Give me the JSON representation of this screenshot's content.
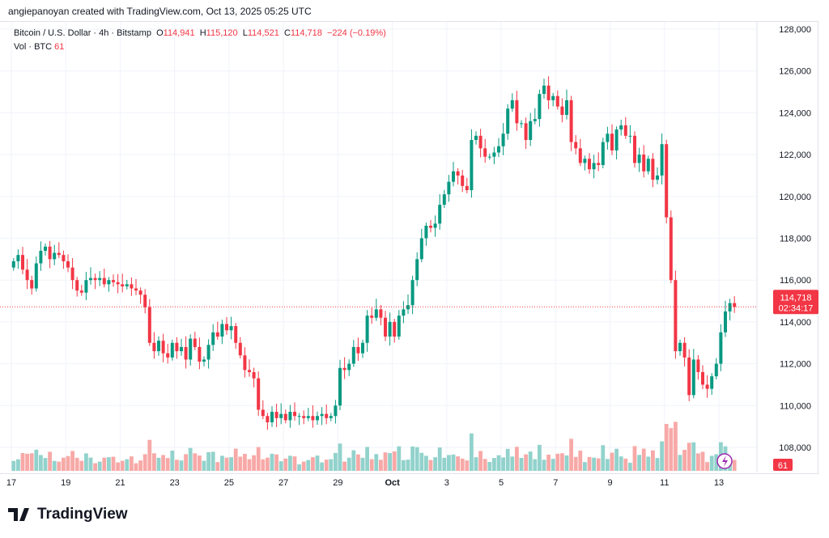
{
  "credit": "angiepanoyan created with TradingView.com, Oct 13, 2025 05:25 UTC",
  "legend": {
    "symbol": "Bitcoin / U.S. Dollar · 4h · Bitstamp",
    "o_label": "O",
    "o": "114,941",
    "h_label": "H",
    "h": "115,120",
    "l_label": "L",
    "l": "114,521",
    "c_label": "C",
    "c": "114,718",
    "change": "−224 (−0.19%)",
    "vol_label": "Vol · BTC",
    "vol": "61"
  },
  "price_label": {
    "price": "114,718",
    "countdown": "02:34:17",
    "vol": "61"
  },
  "brand": "TradingView",
  "colors": {
    "up": "#089981",
    "down": "#f23645",
    "vol_up": "#92d2cc",
    "vol_down": "#f7a9a7"
  },
  "chart_data": {
    "type": "candlestick",
    "interval": "4h",
    "ylim": [
      107000,
      129000
    ],
    "y_ticks": [
      "128,000",
      "126,000",
      "124,000",
      "122,000",
      "120,000",
      "118,000",
      "116,000",
      "114,000",
      "112,000",
      "110,000",
      "108,000"
    ],
    "y_tick_values": [
      128000,
      126000,
      124000,
      122000,
      120000,
      118000,
      116000,
      114000,
      112000,
      110000,
      108000
    ],
    "x_ticks": [
      "17",
      "19",
      "21",
      "23",
      "25",
      "27",
      "29",
      "Oct",
      "3",
      "5",
      "7",
      "9",
      "11",
      "13"
    ],
    "closes_k": [
      116.9,
      117.2,
      116.5,
      116.0,
      115.6,
      116.8,
      117.4,
      117.6,
      117.0,
      117.3,
      117.2,
      116.9,
      116.6,
      116.0,
      115.5,
      115.4,
      116.0,
      116.1,
      116.0,
      116.1,
      115.8,
      116.0,
      115.9,
      115.8,
      115.7,
      115.8,
      115.6,
      115.5,
      115.3,
      114.7,
      113.0,
      112.6,
      113.1,
      112.5,
      112.3,
      113.0,
      112.6,
      112.8,
      112.2,
      113.2,
      112.8,
      112.1,
      112.2,
      112.9,
      113.5,
      113.3,
      113.9,
      113.6,
      113.8,
      113.0,
      112.4,
      111.7,
      111.6,
      111.3,
      109.8,
      109.5,
      109.2,
      109.7,
      109.4,
      109.6,
      109.3,
      109.7,
      109.5,
      109.5,
      109.4,
      109.5,
      109.3,
      109.5,
      109.6,
      109.4,
      109.5,
      110.0,
      111.8,
      111.7,
      112.0,
      112.8,
      112.5,
      113.0,
      114.3,
      114.2,
      114.6,
      114.2,
      113.3,
      114.0,
      113.3,
      114.3,
      114.6,
      114.8,
      116.0,
      117.0,
      118.0,
      118.6,
      118.5,
      118.7,
      119.6,
      120.1,
      120.7,
      121.2,
      121.0,
      120.5,
      120.3,
      122.7,
      122.9,
      122.3,
      121.9,
      121.9,
      122.1,
      122.4,
      123.0,
      124.2,
      124.6,
      123.5,
      123.5,
      122.7,
      123.6,
      123.7,
      124.9,
      125.3,
      124.6,
      124.8,
      124.3,
      123.9,
      124.6,
      122.6,
      122.3,
      121.6,
      121.8,
      121.3,
      121.6,
      121.5,
      122.6,
      123.0,
      122.2,
      123.2,
      123.4,
      122.9,
      122.9,
      121.6,
      122.0,
      121.2,
      121.8,
      120.8,
      121.0,
      122.5,
      119.0,
      116.0,
      112.6,
      113.0,
      112.3,
      110.5,
      112.2,
      111.6,
      111.0,
      110.8,
      111.4,
      112.0,
      113.5,
      114.5,
      114.9,
      114.72
    ]
  }
}
